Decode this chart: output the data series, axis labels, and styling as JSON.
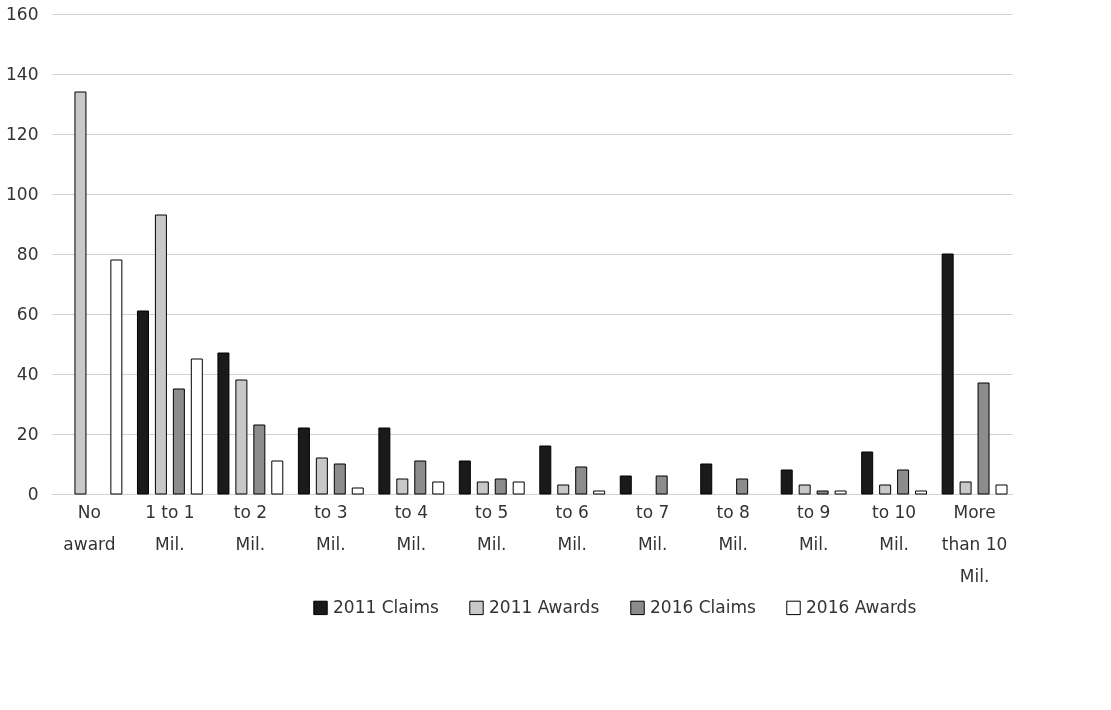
{
  "chart_data": {
    "type": "bar",
    "categories": [
      "No award",
      "1 to 1 Mil.",
      "to 2 Mil.",
      "to 3 Mil.",
      "to 4 Mil.",
      "to 5 Mil.",
      "to 6 Mil.",
      "to 7 Mil.",
      "to 8 Mil.",
      "to 9 Mil.",
      "to 10 Mil.",
      "More than 10 Mil."
    ],
    "series": [
      {
        "name": "2011 Claims",
        "color": "#1a1a1a",
        "values": [
          null,
          61,
          47,
          22,
          22,
          11,
          16,
          6,
          10,
          8,
          14,
          80
        ]
      },
      {
        "name": "2011 Awards",
        "color": "#c8c8c8",
        "values": [
          134,
          93,
          38,
          12,
          5,
          4,
          3,
          null,
          null,
          3,
          3,
          4
        ]
      },
      {
        "name": "2016 Claims",
        "color": "#8c8c8c",
        "values": [
          null,
          35,
          23,
          10,
          11,
          5,
          9,
          6,
          5,
          1,
          8,
          37
        ]
      },
      {
        "name": "2016 Awards",
        "color": "#ffffff",
        "values": [
          78,
          45,
          11,
          2,
          4,
          4,
          1,
          null,
          null,
          1,
          1,
          3
        ]
      }
    ],
    "ylim": [
      0,
      160
    ],
    "yticks": [
      0,
      20,
      40,
      60,
      80,
      100,
      120,
      140,
      160
    ],
    "grid": "y",
    "legend": "bottom"
  }
}
